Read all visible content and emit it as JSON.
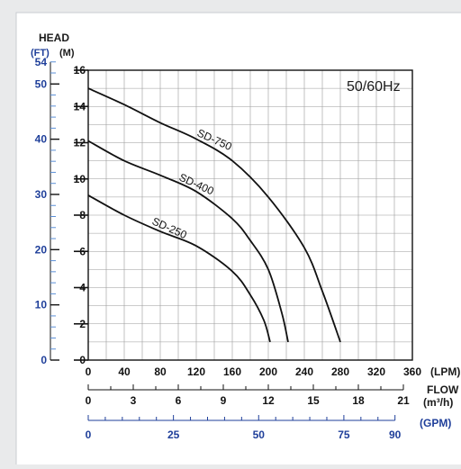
{
  "colors": {
    "background": "#e9eaeb",
    "frame": "#ffffff",
    "plot_bg": "#ffffff",
    "grid": "#9a9a9a",
    "axis": "#111111",
    "curve": "#111111",
    "label_blue": "#1f3f9a",
    "ft_minor_ticks": "#5b8fd6"
  },
  "labels": {
    "head": "HEAD",
    "ft_unit": "(FT)",
    "m_unit": "(M)",
    "frequency": "50/60Hz",
    "flow": "FLOW",
    "lpm_unit": "(LPM)",
    "m3h_unit": "(m³/h)",
    "gpm_unit": "(GPM)"
  },
  "chart_data": {
    "type": "line",
    "title": "",
    "annotation": "50/60Hz",
    "xlabel": "FLOW",
    "x_unit": "(LPM)",
    "ylabel": "HEAD",
    "y_unit": "(M)",
    "xlim": [
      0,
      360
    ],
    "ylim": [
      0,
      16
    ],
    "grid": true,
    "x_ticks": [
      0,
      40,
      80,
      120,
      160,
      200,
      240,
      280,
      320,
      360
    ],
    "y_ticks": [
      0,
      2,
      4,
      6,
      8,
      10,
      12,
      14,
      16
    ],
    "secondary_axes": {
      "ft": {
        "unit": "(FT)",
        "ticks": [
          0,
          10,
          20,
          30,
          40,
          50,
          54
        ]
      },
      "m3h": {
        "unit": "(m³/h)",
        "ticks": [
          0,
          3,
          6,
          9,
          12,
          15,
          18,
          21
        ]
      },
      "gpm": {
        "unit": "(GPM)",
        "ticks": [
          0,
          25,
          50,
          75,
          90
        ]
      }
    },
    "series": [
      {
        "name": "SD-750",
        "x": [
          0,
          40,
          80,
          120,
          160,
          200,
          240,
          260,
          280
        ],
        "y": [
          15.0,
          14.1,
          13.1,
          12.2,
          11.0,
          9.0,
          6.2,
          3.8,
          1.0
        ]
      },
      {
        "name": "SD-400",
        "x": [
          0,
          40,
          80,
          120,
          160,
          180,
          200,
          215,
          222
        ],
        "y": [
          12.1,
          11.0,
          10.2,
          9.3,
          7.8,
          6.6,
          5.0,
          2.6,
          1.0
        ]
      },
      {
        "name": "SD-250",
        "x": [
          0,
          40,
          80,
          120,
          160,
          180,
          195,
          202
        ],
        "y": [
          9.1,
          8.0,
          7.1,
          6.3,
          4.9,
          3.6,
          2.2,
          1.0
        ]
      }
    ]
  }
}
